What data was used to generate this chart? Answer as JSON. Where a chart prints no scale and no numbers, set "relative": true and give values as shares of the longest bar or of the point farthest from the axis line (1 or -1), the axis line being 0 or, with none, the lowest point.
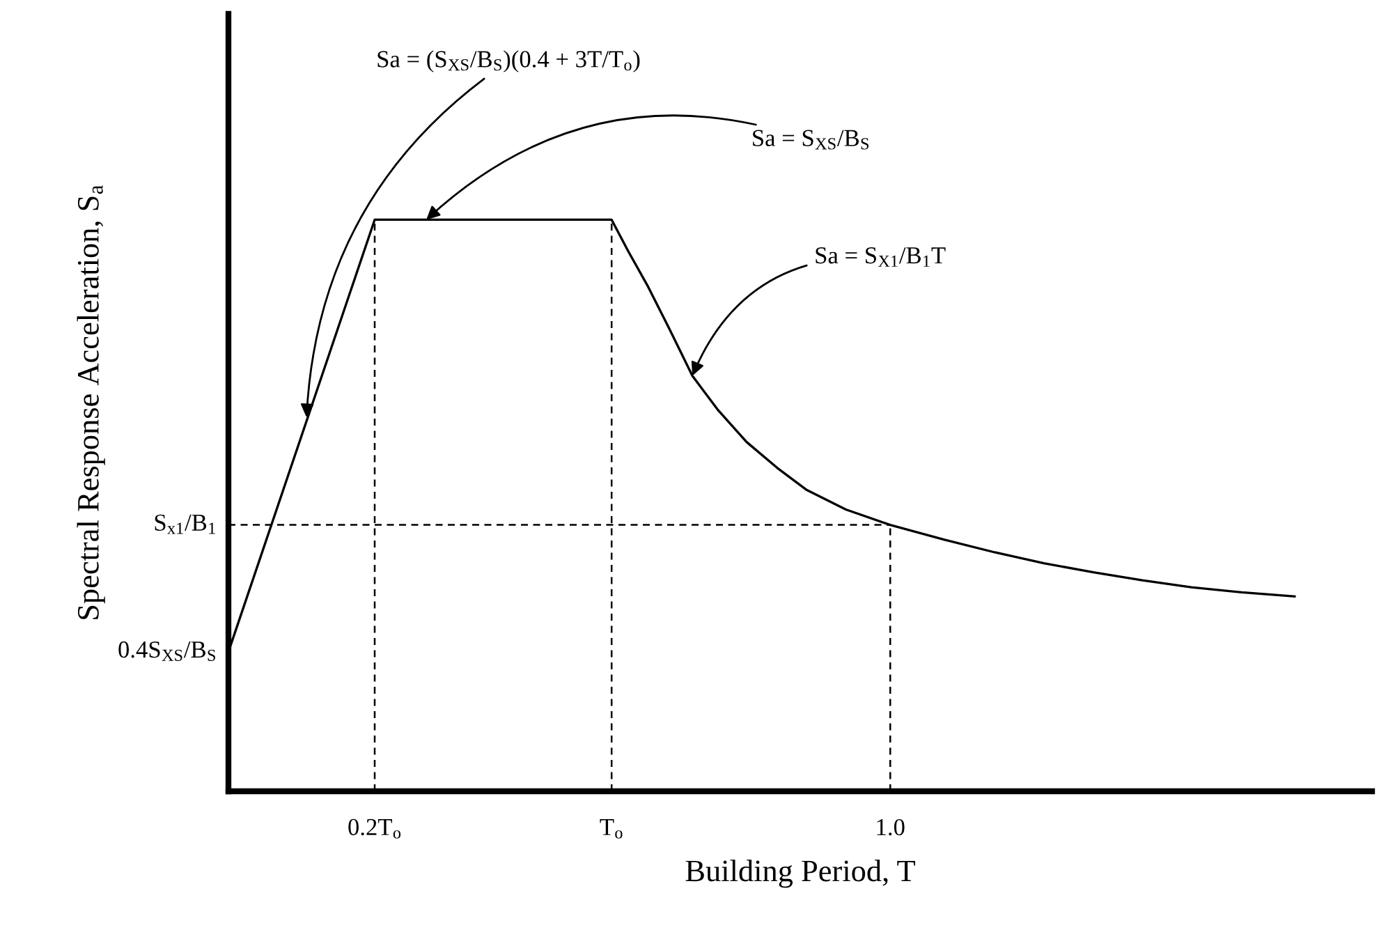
{
  "chart_data": {
    "type": "line",
    "relative": true,
    "xlabel": "Building Period, T",
    "ylabel": "Spectral Response Acceleration, S$_{a}$",
    "xlim": [
      0,
      1.728
    ],
    "xticks": [
      {
        "value": 0.221,
        "label": "0.2T$_{o}$"
      },
      {
        "value": 0.579,
        "label": "T$_{o}$"
      },
      {
        "value": 1.0,
        "label": "1.0"
      }
    ],
    "grid": false,
    "legend": false,
    "marker": "none",
    "tick_labels": "x",
    "series": [
      {
        "color": "#000000",
        "line_style": "solid",
        "x": [
          0,
          0.221,
          0.579,
          0.604,
          0.634,
          0.665,
          0.701,
          0.739,
          0.783,
          0.829,
          0.874,
          0.933,
          1.0,
          1.082,
          1.158,
          1.232,
          1.307,
          1.381,
          1.455,
          1.531,
          1.611
        ],
        "values": [
          0.244,
          1,
          1,
          0.945,
          0.883,
          0.812,
          0.727,
          0.668,
          0.611,
          0.566,
          0.527,
          0.493,
          0.466,
          0.44,
          0.418,
          0.399,
          0.383,
          0.369,
          0.357,
          0.348,
          0.341
        ]
      },
      {
        "color": "#000000",
        "line_style": "dashed",
        "x": [
          0.221,
          0.221
        ],
        "values": [
          0,
          1
        ]
      },
      {
        "color": "#000000",
        "line_style": "dashed",
        "x": [
          0.579,
          0.579
        ],
        "values": [
          0,
          1
        ]
      },
      {
        "color": "#000000",
        "line_style": "dashed",
        "x": [
          1.0,
          1.0
        ],
        "values": [
          0,
          0.466
        ]
      },
      {
        "color": "#000000",
        "line_style": "dashed",
        "x": [
          0,
          1.0
        ],
        "values": [
          0.466,
          0.466
        ]
      }
    ],
    "annotations": [
      {
        "text": "Sa = (S$_{XS}$/B$_{S}$)(0.4 + 3T/T$_{o}$)",
        "x": 0.118,
        "y": 0.654
      },
      {
        "text": "Sa = S$_{XS}$/B$_{S}$",
        "x": 0.299,
        "y": 1
      },
      {
        "text": "Sa = S$_{X1}$/B$_{1}$T",
        "x": 0.701,
        "y": 0.727
      },
      {
        "text": "S$_{x1}$/B$_{1}$",
        "x": 0,
        "y": 0.466
      },
      {
        "text": "0.4S$_{XS}$/B$_{S}$",
        "x": 0,
        "y": 0.244
      }
    ]
  }
}
